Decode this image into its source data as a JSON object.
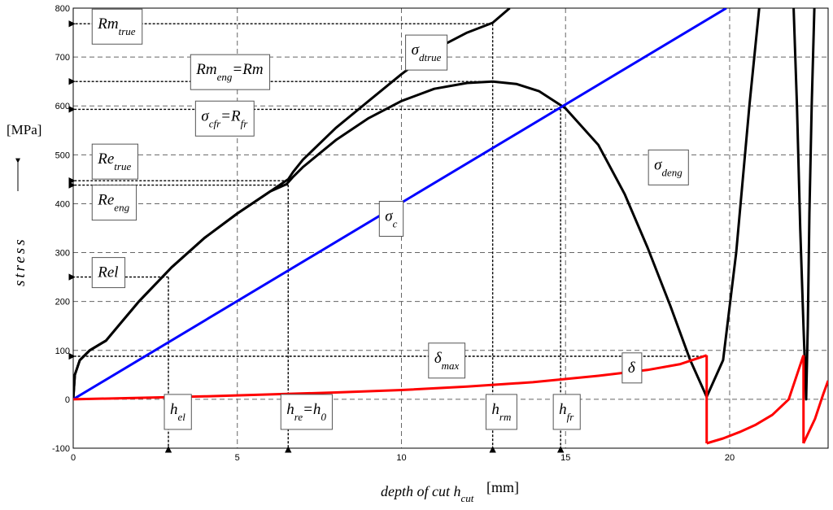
{
  "chart_data": {
    "type": "line",
    "xlabel": "depth of cut h",
    "xlabel_sub": "cut",
    "xunit": "[mm]",
    "ylabel": "stress",
    "yunit": "[MPa]",
    "xlim": [
      0,
      23
    ],
    "ylim": [
      -100,
      800
    ],
    "xticks": [
      0,
      5,
      10,
      15,
      20
    ],
    "yticks": [
      -100,
      0,
      100,
      200,
      300,
      400,
      500,
      600,
      700,
      800
    ],
    "grid": true,
    "colors": {
      "sigma_c": "#0000ff",
      "delta": "#ff0000",
      "stress": "#000000",
      "ref": "#000000"
    },
    "series": [
      {
        "key": "sigma_dtrue",
        "x": [
          0,
          0.05,
          0.2,
          0.5,
          1.0,
          1.5,
          2.0,
          3.0,
          4.0,
          5.0,
          6.0,
          6.55,
          6.7,
          7.0,
          8.0,
          9.0,
          10.0,
          11.0,
          12.0,
          12.78,
          13.3
        ],
        "y": [
          0,
          50,
          80,
          100,
          120,
          160,
          200,
          270,
          330,
          380,
          425,
          450,
          465,
          490,
          555,
          610,
          665,
          715,
          750,
          770,
          800
        ]
      },
      {
        "key": "sigma_deng",
        "x": [
          0,
          0.05,
          0.2,
          0.5,
          1.0,
          1.5,
          2.0,
          3.0,
          4.0,
          5.0,
          6.0,
          6.5,
          6.7,
          7.0,
          8.0,
          9.0,
          10.0,
          11.0,
          12.0,
          12.78,
          13.5,
          14.2,
          15.0,
          16.0,
          16.8,
          17.5,
          18.2,
          18.8,
          19.3,
          19.8,
          20.2,
          20.6,
          20.9
        ],
        "y": [
          0,
          50,
          80,
          100,
          120,
          160,
          200,
          270,
          330,
          380,
          425,
          440,
          455,
          475,
          530,
          575,
          610,
          635,
          647,
          650,
          645,
          630,
          595,
          520,
          420,
          310,
          190,
          80,
          5,
          80,
          300,
          600,
          800
        ]
      },
      {
        "key": "sigma_deng_2",
        "x": [
          21.95,
          22.05,
          22.15,
          22.25,
          22.33,
          22.38,
          22.43,
          22.5,
          22.58
        ],
        "y": [
          800,
          600,
          350,
          150,
          0,
          150,
          380,
          600,
          800
        ]
      },
      {
        "key": "sigma_c",
        "x": [
          0,
          19.9
        ],
        "y": [
          0,
          800
        ]
      },
      {
        "key": "delta",
        "x": [
          0,
          2,
          4,
          6,
          8,
          10,
          12,
          14,
          16,
          17.5,
          18.5,
          19.3
        ],
        "y": [
          0,
          3,
          6,
          10,
          14,
          19,
          26,
          35,
          48,
          60,
          72,
          90
        ]
      },
      {
        "key": "delta_2",
        "x": [
          19.3,
          19.8,
          20.3,
          20.8,
          21.3,
          21.8,
          22.25
        ],
        "y": [
          -90,
          -80,
          -67,
          -52,
          -32,
          0,
          90
        ]
      },
      {
        "key": "delta_3",
        "x": [
          22.25,
          22.6,
          22.85,
          23.0
        ],
        "y": [
          -90,
          -40,
          10,
          38
        ]
      }
    ],
    "reference_lines": [
      {
        "type": "h",
        "y": 768,
        "x_from": 0,
        "x_to": 12.78
      },
      {
        "type": "h",
        "y": 650,
        "x_from": 0,
        "x_to": 12.78
      },
      {
        "type": "h",
        "y": 593,
        "x_from": 0,
        "x_to": 14.85
      },
      {
        "type": "h",
        "y": 447,
        "x_from": 0,
        "x_to": 6.55
      },
      {
        "type": "h",
        "y": 438,
        "x_from": 0,
        "x_to": 6.55
      },
      {
        "type": "h",
        "y": 250,
        "x_from": 0,
        "x_to": 2.9
      },
      {
        "type": "h",
        "y": 88,
        "x_from": 0,
        "x_to": 19.3
      },
      {
        "type": "v",
        "x": 2.9,
        "y_from": 250,
        "y_to": -100
      },
      {
        "type": "v",
        "x": 6.55,
        "y_from": 447,
        "y_to": -100
      },
      {
        "type": "v",
        "x": 12.78,
        "y_from": 768,
        "y_to": -100
      },
      {
        "type": "v",
        "x": 14.85,
        "y_from": 593,
        "y_to": -100
      }
    ],
    "annotations": [
      {
        "key": "rm_true",
        "base": "Rm",
        "sub": "true",
        "x": 0.75,
        "y": 758
      },
      {
        "key": "rm_eng",
        "base": "Rm",
        "sub": "eng",
        "tail": "=Rm",
        "x": 3.75,
        "y": 665
      },
      {
        "key": "sigma_cfr",
        "base": "σ",
        "sub": "cfr",
        "tail": "=R",
        "sub2": "fr",
        "x": 3.9,
        "y": 570
      },
      {
        "key": "re_true",
        "base": "Re",
        "sub": "true",
        "x": 0.75,
        "y": 482
      },
      {
        "key": "re_eng",
        "base": "Re",
        "sub": "eng",
        "x": 0.75,
        "y": 398
      },
      {
        "key": "rel",
        "base": "Rel",
        "x": 0.75,
        "y": 250
      },
      {
        "key": "sigma_dtrue",
        "base": "σ",
        "sub": "dtrue",
        "x": 10.3,
        "y": 705
      },
      {
        "key": "sigma_deng",
        "base": "σ",
        "sub": "deng",
        "x": 17.7,
        "y": 470
      },
      {
        "key": "sigma_c",
        "base": "σ",
        "sub": "c",
        "x": 9.5,
        "y": 365
      },
      {
        "key": "delta_max",
        "base": "δ",
        "sub": "max",
        "x": 11.0,
        "y": 75
      },
      {
        "key": "delta",
        "base": "δ",
        "x": 16.9,
        "y": 55
      },
      {
        "key": "h_el",
        "base": "h",
        "sub": "el",
        "x": 2.95,
        "y": -30
      },
      {
        "key": "h_re",
        "base": "h",
        "sub": "re",
        "tail": "=h",
        "sub2": "0",
        "x": 6.5,
        "y": -30
      },
      {
        "key": "h_rm",
        "base": "h",
        "sub": "rm",
        "x": 12.75,
        "y": -30
      },
      {
        "key": "h_fr",
        "base": "h",
        "sub": "fr",
        "x": 14.8,
        "y": -30
      }
    ]
  }
}
